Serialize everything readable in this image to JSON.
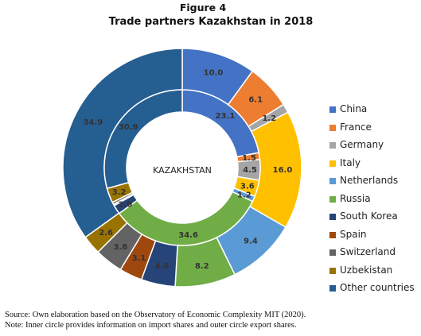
{
  "figure_label": "Figure 4",
  "title": "Trade partners Kazakhstan in 2018",
  "center_label": "KAZAKHSTAN",
  "source_note": "Source: Own elaboration based on the Observatory of Economic Complexity MIT (2020).",
  "inner_outer_note": "Note: Inner circle provides information on import shares and outer circle export shares.",
  "colors": {
    "China": "#4472C4",
    "France": "#ED7D31",
    "Germany": "#A5A5A5",
    "Italy": "#FFC000",
    "Netherlands": "#5B9BD5",
    "Russia": "#70AD47",
    "South Korea": "#264478",
    "Spain": "#9E480E",
    "Switzerland": "#636363",
    "Uzbekistan": "#997300",
    "Other countries": "#255E91"
  },
  "chart_data": {
    "type": "donut",
    "categories": [
      "China",
      "France",
      "Germany",
      "Italy",
      "Netherlands",
      "Russia",
      "South Korea",
      "Spain",
      "Switzerland",
      "Uzbekistan",
      "Other countries"
    ],
    "series": [
      {
        "ring": "outer",
        "values": [
          10.0,
          6.1,
          1.2,
          16.0,
          9.4,
          8.2,
          4.6,
          3.1,
          3.8,
          2.6,
          34.9
        ],
        "labels": [
          "10.0",
          "6.1",
          "1.2",
          "16.0",
          "9.4",
          "8.2",
          "4.6",
          "3.1",
          "3.8",
          "2.6",
          "34.9"
        ]
      },
      {
        "ring": "inner",
        "values": [
          23.1,
          1.5,
          4.5,
          3.6,
          1.2,
          34.6,
          2.0,
          0.3,
          0.5,
          3.2,
          30.9
        ],
        "labels": [
          "23.1",
          "1.5",
          "4.5",
          "3.6",
          "1.2",
          "34.6",
          "2.0",
          "",
          "",
          "3.2",
          "30.9"
        ]
      }
    ],
    "legend_position": "right"
  }
}
